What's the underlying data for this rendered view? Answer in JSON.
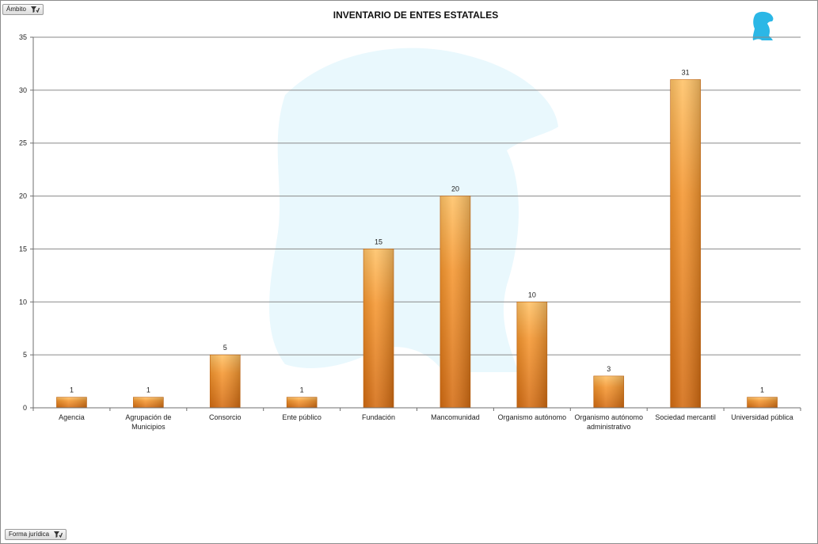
{
  "filters": {
    "ambito_label": "Ámbito",
    "forma_label": "Forma jurídica"
  },
  "icons": {
    "filter": "filter-funnel-icon",
    "logo": "eagle-logo-icon",
    "watermark": "eagle-watermark-icon"
  },
  "colors": {
    "bar_top": "#ffc266",
    "bar_mid": "#f5962f",
    "bar_bottom": "#d46c12",
    "logo": "#2bb7e6",
    "watermark": "#e9f8fd"
  },
  "chart_data": {
    "type": "bar",
    "title": "INVENTARIO DE ENTES ESTATALES",
    "xlabel": "",
    "ylabel": "",
    "ylim": [
      0,
      35
    ],
    "yticks": [
      0,
      5,
      10,
      15,
      20,
      25,
      30,
      35
    ],
    "grid": true,
    "legend": "none",
    "categories": [
      [
        "Agencia"
      ],
      [
        "Agrupación de",
        "Municipios"
      ],
      [
        "Consorcio"
      ],
      [
        "Ente público"
      ],
      [
        "Fundación"
      ],
      [
        "Mancomunidad"
      ],
      [
        "Organismo autónomo"
      ],
      [
        "Organismo autónomo",
        "administrativo"
      ],
      [
        "Sociedad mercantil"
      ],
      [
        "Universidad pública"
      ]
    ],
    "values": [
      1,
      1,
      5,
      1,
      15,
      20,
      10,
      3,
      31,
      1
    ]
  }
}
